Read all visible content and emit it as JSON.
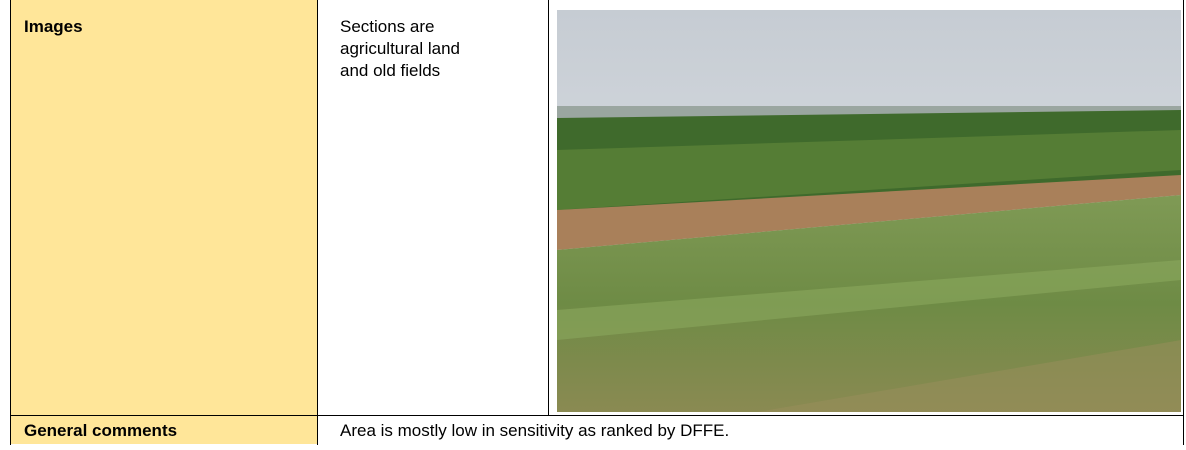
{
  "table": {
    "rows": [
      [
        "Images",
        "Sections are agricultural land and old fields"
      ],
      [
        "General comments",
        "Area is mostly low in sensitivity as ranked by DFFE."
      ]
    ]
  }
}
